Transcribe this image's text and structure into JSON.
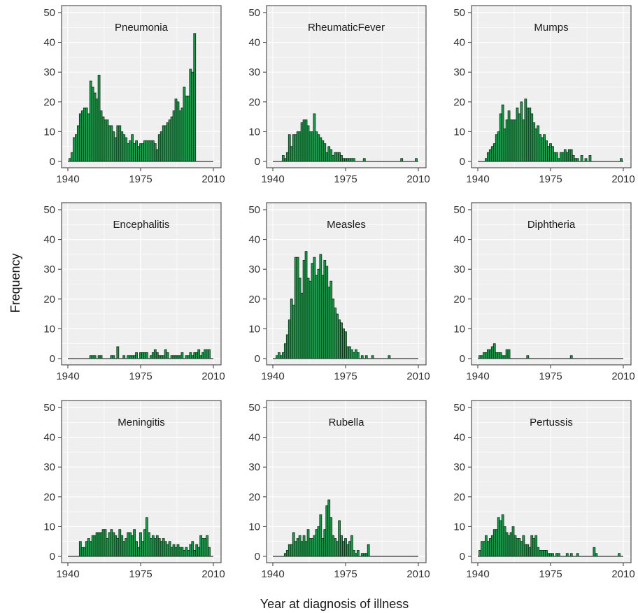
{
  "figure": {
    "xlabel": "Year at diagnosis of illness",
    "ylabel": "Frequency"
  },
  "colors": {
    "bar_fill": "#1f9a4a",
    "bar_stroke": "#0d2a18",
    "panel_bg": "#efefef",
    "grid": "#ffffff",
    "axis": "#333333"
  },
  "chart_data": [
    {
      "type": "bar",
      "title": "Pneumonia",
      "xlim": [
        1940,
        2010
      ],
      "ylim": [
        0,
        50
      ],
      "xticks": [
        "1940",
        "1975",
        "2010"
      ],
      "yticks": [
        "0",
        "10",
        "20",
        "30",
        "40",
        "50"
      ],
      "x": [
        1941,
        1942,
        1943,
        1944,
        1945,
        1946,
        1947,
        1948,
        1949,
        1950,
        1951,
        1952,
        1953,
        1954,
        1955,
        1956,
        1957,
        1958,
        1959,
        1960,
        1961,
        1962,
        1963,
        1964,
        1965,
        1966,
        1967,
        1968,
        1969,
        1970,
        1971,
        1972,
        1973,
        1974,
        1975,
        1976,
        1977,
        1978,
        1979,
        1980,
        1981,
        1982,
        1983,
        1984,
        1985,
        1986,
        1987,
        1988,
        1989,
        1990,
        1991,
        1992,
        1993,
        1994,
        1995,
        1996,
        1997,
        1998,
        1999,
        2000,
        2001,
        2002,
        2003,
        2004,
        2005,
        2006,
        2007,
        2008,
        2009
      ],
      "values": [
        1,
        3,
        8,
        9,
        12,
        16,
        17,
        18,
        18,
        16,
        27,
        25,
        23,
        21,
        29,
        17,
        15,
        14,
        14,
        12,
        12,
        10,
        8,
        12,
        12,
        10,
        9,
        8,
        6,
        7,
        9,
        6,
        7,
        5,
        6,
        6,
        7,
        7,
        7,
        7,
        7,
        6,
        4,
        9,
        10,
        12,
        12,
        13,
        14,
        15,
        17,
        21,
        20,
        17,
        18,
        25,
        22,
        22,
        31,
        30,
        43,
        0,
        0,
        0,
        0,
        0,
        0,
        0,
        0
      ]
    },
    {
      "type": "bar",
      "title": "RheumaticFever",
      "xlim": [
        1940,
        2010
      ],
      "ylim": [
        0,
        50
      ],
      "xticks": [
        "1940",
        "1975",
        "2010"
      ],
      "yticks": [
        "0",
        "10",
        "20",
        "30",
        "40",
        "50"
      ],
      "x": [
        1945,
        1946,
        1947,
        1948,
        1949,
        1950,
        1951,
        1952,
        1953,
        1954,
        1955,
        1956,
        1957,
        1958,
        1959,
        1960,
        1961,
        1962,
        1963,
        1964,
        1965,
        1966,
        1967,
        1968,
        1969,
        1970,
        1971,
        1972,
        1973,
        1974,
        1975,
        1976,
        1977,
        1978,
        1979,
        1984,
        1986,
        1991,
        2002,
        2009
      ],
      "values": [
        2,
        1,
        3,
        9,
        5,
        9,
        9,
        10,
        10,
        13,
        14,
        14,
        12,
        10,
        10,
        16,
        10,
        9,
        8,
        7,
        6,
        3,
        5,
        4,
        2,
        3,
        3,
        3,
        2,
        1,
        1,
        1,
        1,
        1,
        1,
        1,
        0,
        0,
        1,
        1
      ]
    },
    {
      "type": "bar",
      "title": "Mumps",
      "xlim": [
        1940,
        2010
      ],
      "ylim": [
        0,
        50
      ],
      "xticks": [
        "1940",
        "1975",
        "2010"
      ],
      "yticks": [
        "0",
        "10",
        "20",
        "30",
        "40",
        "50"
      ],
      "x": [
        1944,
        1945,
        1946,
        1947,
        1948,
        1949,
        1950,
        1951,
        1952,
        1953,
        1954,
        1955,
        1956,
        1957,
        1958,
        1959,
        1960,
        1961,
        1962,
        1963,
        1964,
        1965,
        1966,
        1967,
        1968,
        1969,
        1970,
        1971,
        1972,
        1973,
        1974,
        1975,
        1976,
        1977,
        1978,
        1979,
        1980,
        1981,
        1982,
        1983,
        1984,
        1985,
        1986,
        1987,
        1988,
        1990,
        1992,
        1994,
        2009
      ],
      "values": [
        1,
        3,
        4,
        5,
        6,
        9,
        10,
        16,
        19,
        11,
        14,
        17,
        14,
        14,
        14,
        18,
        16,
        20,
        14,
        21,
        18,
        18,
        16,
        13,
        11,
        12,
        9,
        8,
        9,
        7,
        5,
        6,
        5,
        3,
        3,
        1,
        3,
        3,
        4,
        3,
        4,
        4,
        2,
        1,
        1,
        2,
        1,
        2,
        1
      ]
    },
    {
      "type": "bar",
      "title": "Encephalitis",
      "xlim": [
        1940,
        2010
      ],
      "ylim": [
        0,
        50
      ],
      "xticks": [
        "1940",
        "1975",
        "2010"
      ],
      "yticks": [
        "0",
        "10",
        "20",
        "30",
        "40",
        "50"
      ],
      "x": [
        1951,
        1952,
        1953,
        1955,
        1956,
        1961,
        1962,
        1964,
        1967,
        1969,
        1970,
        1971,
        1972,
        1973,
        1975,
        1976,
        1977,
        1978,
        1980,
        1981,
        1982,
        1983,
        1984,
        1985,
        1986,
        1987,
        1988,
        1990,
        1991,
        1992,
        1993,
        1994,
        1995,
        1997,
        1998,
        1999,
        2000,
        2001,
        2002,
        2003,
        2004,
        2005,
        2006,
        2007,
        2008
      ],
      "values": [
        1,
        1,
        1,
        1,
        1,
        1,
        1,
        4,
        1,
        1,
        1,
        1,
        1,
        2,
        2,
        2,
        2,
        2,
        1,
        2,
        3,
        2,
        1,
        1,
        1,
        3,
        2,
        1,
        1,
        1,
        1,
        1,
        2,
        1,
        1,
        2,
        1,
        2,
        2,
        3,
        1,
        2,
        3,
        3,
        3
      ]
    },
    {
      "type": "bar",
      "title": "Measles",
      "xlim": [
        1940,
        2010
      ],
      "ylim": [
        0,
        50
      ],
      "xticks": [
        "1940",
        "1975",
        "2010"
      ],
      "yticks": [
        "0",
        "10",
        "20",
        "30",
        "40",
        "50"
      ],
      "x": [
        1942,
        1943,
        1944,
        1945,
        1946,
        1947,
        1948,
        1949,
        1950,
        1951,
        1952,
        1953,
        1954,
        1955,
        1956,
        1957,
        1958,
        1959,
        1960,
        1961,
        1962,
        1963,
        1964,
        1965,
        1966,
        1967,
        1968,
        1969,
        1970,
        1971,
        1972,
        1973,
        1974,
        1975,
        1976,
        1977,
        1978,
        1979,
        1980,
        1981,
        1983,
        1985,
        1988,
        1996
      ],
      "values": [
        1,
        2,
        1,
        2,
        5,
        8,
        13,
        20,
        18,
        34,
        34,
        27,
        22,
        33,
        36,
        27,
        26,
        32,
        34,
        28,
        30,
        35,
        28,
        33,
        31,
        24,
        26,
        20,
        17,
        15,
        13,
        12,
        10,
        9,
        4,
        4,
        3,
        2,
        3,
        2,
        1,
        1,
        1,
        1
      ]
    },
    {
      "type": "bar",
      "title": "Diphtheria",
      "xlim": [
        1940,
        2010
      ],
      "ylim": [
        0,
        50
      ],
      "xticks": [
        "1940",
        "1975",
        "2010"
      ],
      "yticks": [
        "0",
        "10",
        "20",
        "30",
        "40",
        "50"
      ],
      "x": [
        1941,
        1942,
        1943,
        1944,
        1945,
        1946,
        1947,
        1948,
        1949,
        1950,
        1951,
        1952,
        1953,
        1954,
        1955,
        1956,
        1957,
        1958,
        1959,
        1960,
        1964,
        1985
      ],
      "values": [
        1,
        1,
        2,
        2,
        3,
        3,
        4,
        5,
        2,
        2,
        2,
        1,
        1,
        3,
        3,
        0,
        0,
        0,
        0,
        0,
        1,
        1
      ]
    },
    {
      "type": "bar",
      "title": "Meningitis",
      "xlim": [
        1940,
        2010
      ],
      "ylim": [
        0,
        50
      ],
      "xticks": [
        "1940",
        "1975",
        "2010"
      ],
      "yticks": [
        "0",
        "10",
        "20",
        "30",
        "40",
        "50"
      ],
      "x": [
        1946,
        1947,
        1948,
        1949,
        1950,
        1951,
        1952,
        1953,
        1954,
        1955,
        1956,
        1957,
        1958,
        1959,
        1960,
        1961,
        1962,
        1963,
        1964,
        1965,
        1966,
        1967,
        1968,
        1969,
        1970,
        1971,
        1972,
        1973,
        1974,
        1975,
        1976,
        1977,
        1978,
        1979,
        1980,
        1981,
        1982,
        1983,
        1984,
        1985,
        1986,
        1987,
        1988,
        1989,
        1990,
        1991,
        1992,
        1993,
        1994,
        1995,
        1996,
        1997,
        1998,
        1999,
        2000,
        2001,
        2002,
        2003,
        2004,
        2005,
        2006,
        2007,
        2008
      ],
      "values": [
        5,
        3,
        3,
        5,
        6,
        5,
        7,
        7,
        8,
        8,
        8,
        9,
        9,
        6,
        8,
        9,
        8,
        7,
        6,
        9,
        7,
        5,
        6,
        8,
        8,
        7,
        9,
        5,
        3,
        8,
        5,
        9,
        13,
        8,
        6,
        7,
        6,
        7,
        6,
        5,
        6,
        5,
        4,
        5,
        3,
        4,
        3,
        4,
        3,
        3,
        2,
        3,
        2,
        4,
        5,
        2,
        4,
        3,
        7,
        6,
        6,
        7,
        3
      ]
    },
    {
      "type": "bar",
      "title": "Rubella",
      "xlim": [
        1940,
        2010
      ],
      "ylim": [
        0,
        50
      ],
      "xticks": [
        "1940",
        "1975",
        "2010"
      ],
      "yticks": [
        "0",
        "10",
        "20",
        "30",
        "40",
        "50"
      ],
      "x": [
        1946,
        1947,
        1948,
        1949,
        1950,
        1951,
        1952,
        1953,
        1954,
        1955,
        1956,
        1957,
        1958,
        1959,
        1960,
        1961,
        1962,
        1963,
        1964,
        1965,
        1966,
        1967,
        1968,
        1969,
        1970,
        1971,
        1972,
        1973,
        1974,
        1975,
        1976,
        1977,
        1978,
        1979,
        1980,
        1981,
        1982,
        1983,
        1984,
        1985,
        1986
      ],
      "values": [
        1,
        2,
        4,
        4,
        8,
        5,
        6,
        7,
        5,
        7,
        5,
        9,
        6,
        6,
        7,
        9,
        10,
        14,
        6,
        9,
        17,
        19,
        13,
        7,
        6,
        5,
        12,
        7,
        5,
        6,
        4,
        5,
        7,
        2,
        1,
        2,
        0,
        1,
        1,
        1,
        4
      ]
    },
    {
      "type": "bar",
      "title": "Pertussis",
      "xlim": [
        1940,
        2010
      ],
      "ylim": [
        0,
        50
      ],
      "xticks": [
        "1940",
        "1975",
        "2010"
      ],
      "yticks": [
        "0",
        "10",
        "20",
        "30",
        "40",
        "50"
      ],
      "x": [
        1941,
        1942,
        1943,
        1944,
        1945,
        1946,
        1947,
        1948,
        1949,
        1950,
        1951,
        1952,
        1953,
        1954,
        1955,
        1956,
        1957,
        1958,
        1959,
        1960,
        1961,
        1962,
        1963,
        1964,
        1965,
        1966,
        1967,
        1968,
        1969,
        1970,
        1971,
        1972,
        1973,
        1974,
        1975,
        1976,
        1977,
        1978,
        1979,
        1981,
        1983,
        1985,
        1988,
        1996,
        1997,
        2008
      ],
      "values": [
        2,
        5,
        5,
        7,
        5,
        6,
        7,
        9,
        9,
        13,
        12,
        14,
        10,
        8,
        7,
        8,
        10,
        7,
        6,
        6,
        5,
        7,
        4,
        4,
        3,
        7,
        6,
        7,
        3,
        2,
        2,
        2,
        2,
        1,
        1,
        1,
        0,
        1,
        1,
        0,
        1,
        1,
        1,
        3,
        1,
        1
      ]
    }
  ]
}
